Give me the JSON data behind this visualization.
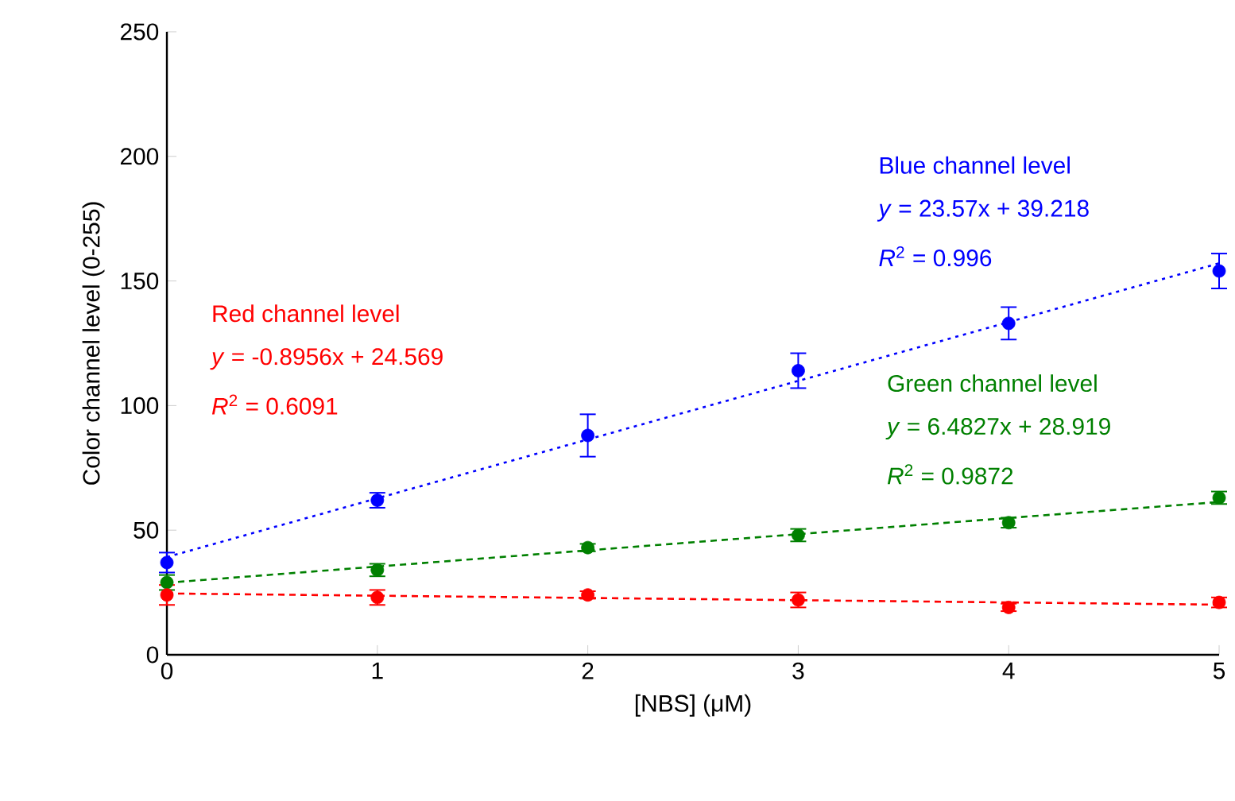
{
  "chart_data": {
    "type": "scatter",
    "xlabel": "[NBS] (μM)",
    "ylabel": "Color channel level (0-255)",
    "x": [
      0,
      1,
      2,
      3,
      4,
      5
    ],
    "xlim": [
      0,
      5
    ],
    "ylim": [
      0,
      250
    ],
    "xticks": [
      0,
      1,
      2,
      3,
      4,
      5
    ],
    "yticks": [
      0,
      50,
      100,
      150,
      200,
      250
    ],
    "grid": false,
    "series": [
      {
        "marker": "circle",
        "color": "#0000ff",
        "values": [
          37,
          62,
          88,
          114,
          133,
          154
        ],
        "errors": [
          4,
          3,
          8.5,
          7,
          6.5,
          7
        ]
      },
      {
        "marker": "circle",
        "color": "#008000",
        "values": [
          29,
          34,
          43,
          48,
          53,
          63
        ],
        "errors": [
          3,
          2.5,
          1.5,
          2.5,
          2,
          2.5
        ]
      },
      {
        "marker": "circle",
        "color": "#ff0000",
        "values": [
          24,
          23,
          24,
          22,
          19,
          21
        ],
        "errors": [
          4,
          3,
          1.5,
          3,
          1.5,
          2
        ]
      },
      {
        "type": "line",
        "color": "#0000ff",
        "values": [
          39.2,
          62.8,
          86.4,
          109.9,
          133.5,
          157.1
        ],
        "line_style": "dotted",
        "marker": "none"
      },
      {
        "type": "line",
        "color": "#008000",
        "values": [
          28.9,
          35.4,
          41.9,
          48.4,
          54.9,
          61.3
        ],
        "line_style": "dashed",
        "marker": "none"
      },
      {
        "type": "line",
        "color": "#ff0000",
        "values": [
          24.6,
          23.7,
          22.8,
          21.9,
          21.0,
          20.1
        ],
        "line_style": "dashed",
        "marker": "none"
      }
    ],
    "annotations": [
      "Blue channel level",
      "*y* = 23.57x + 39.218",
      "*R*$^{2}$ = 0.996",
      "Green channel level",
      "*y* = 6.4827x + 28.919",
      "*R*$^{2}$ = 0.9872",
      "Red channel level",
      "*y* = -0.8956x + 24.569",
      "*R*$^{2}$ = 0.6091"
    ]
  }
}
